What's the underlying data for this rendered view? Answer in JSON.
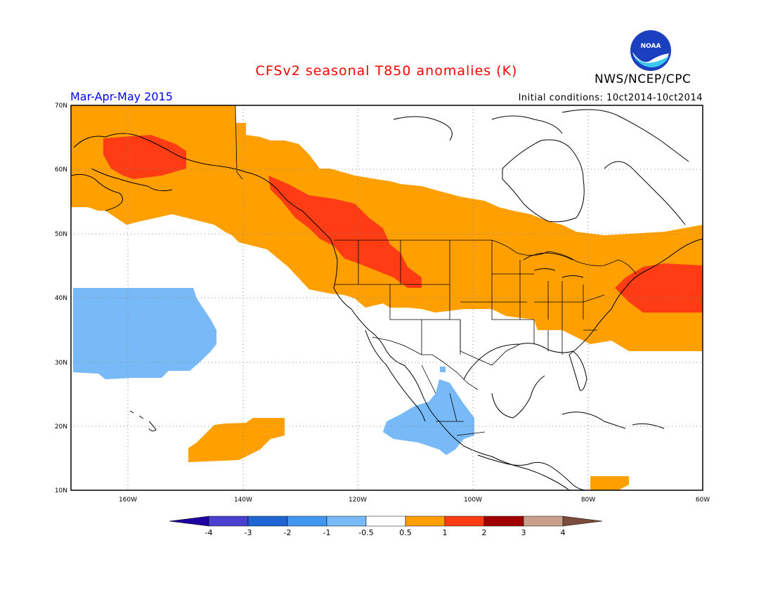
{
  "title": "CFSv2 seasonal T850 anomalies (K)",
  "agency": "NWS/NCEP/CPC",
  "logo_text": "NOAA",
  "period": "Mar-Apr-May 2015",
  "initial_conditions": "Initial conditions: 10ct2014-10ct2014",
  "map": {
    "lon_range": [
      -172,
      -60
    ],
    "lat_range": [
      10,
      70
    ],
    "lat_labels": [
      "70N",
      "60N",
      "50N",
      "40N",
      "30N",
      "20N",
      "10N"
    ],
    "lon_labels": [
      "160W",
      "140W",
      "120W",
      "100W",
      "80W",
      "60W"
    ],
    "grid": "dotted"
  },
  "colorbar": {
    "labels": [
      "-4",
      "-3",
      "-2",
      "-1",
      "-0.5",
      "0.5",
      "1",
      "2",
      "3",
      "4"
    ],
    "colors": [
      "#1f00a0",
      "#4b3fd0",
      "#1e64d2",
      "#4196f0",
      "#78b9f8",
      "#ffffff",
      "#ffa000",
      "#ff3c14",
      "#a00000",
      "#c8a08c",
      "#7a4c3c"
    ]
  },
  "colors": {
    "title": "#ff0000",
    "period": "#0000ff",
    "warm_05_1": "#ffa000",
    "warm_1_2": "#ff3c14",
    "cool_-1_-05": "#78b9f8"
  }
}
